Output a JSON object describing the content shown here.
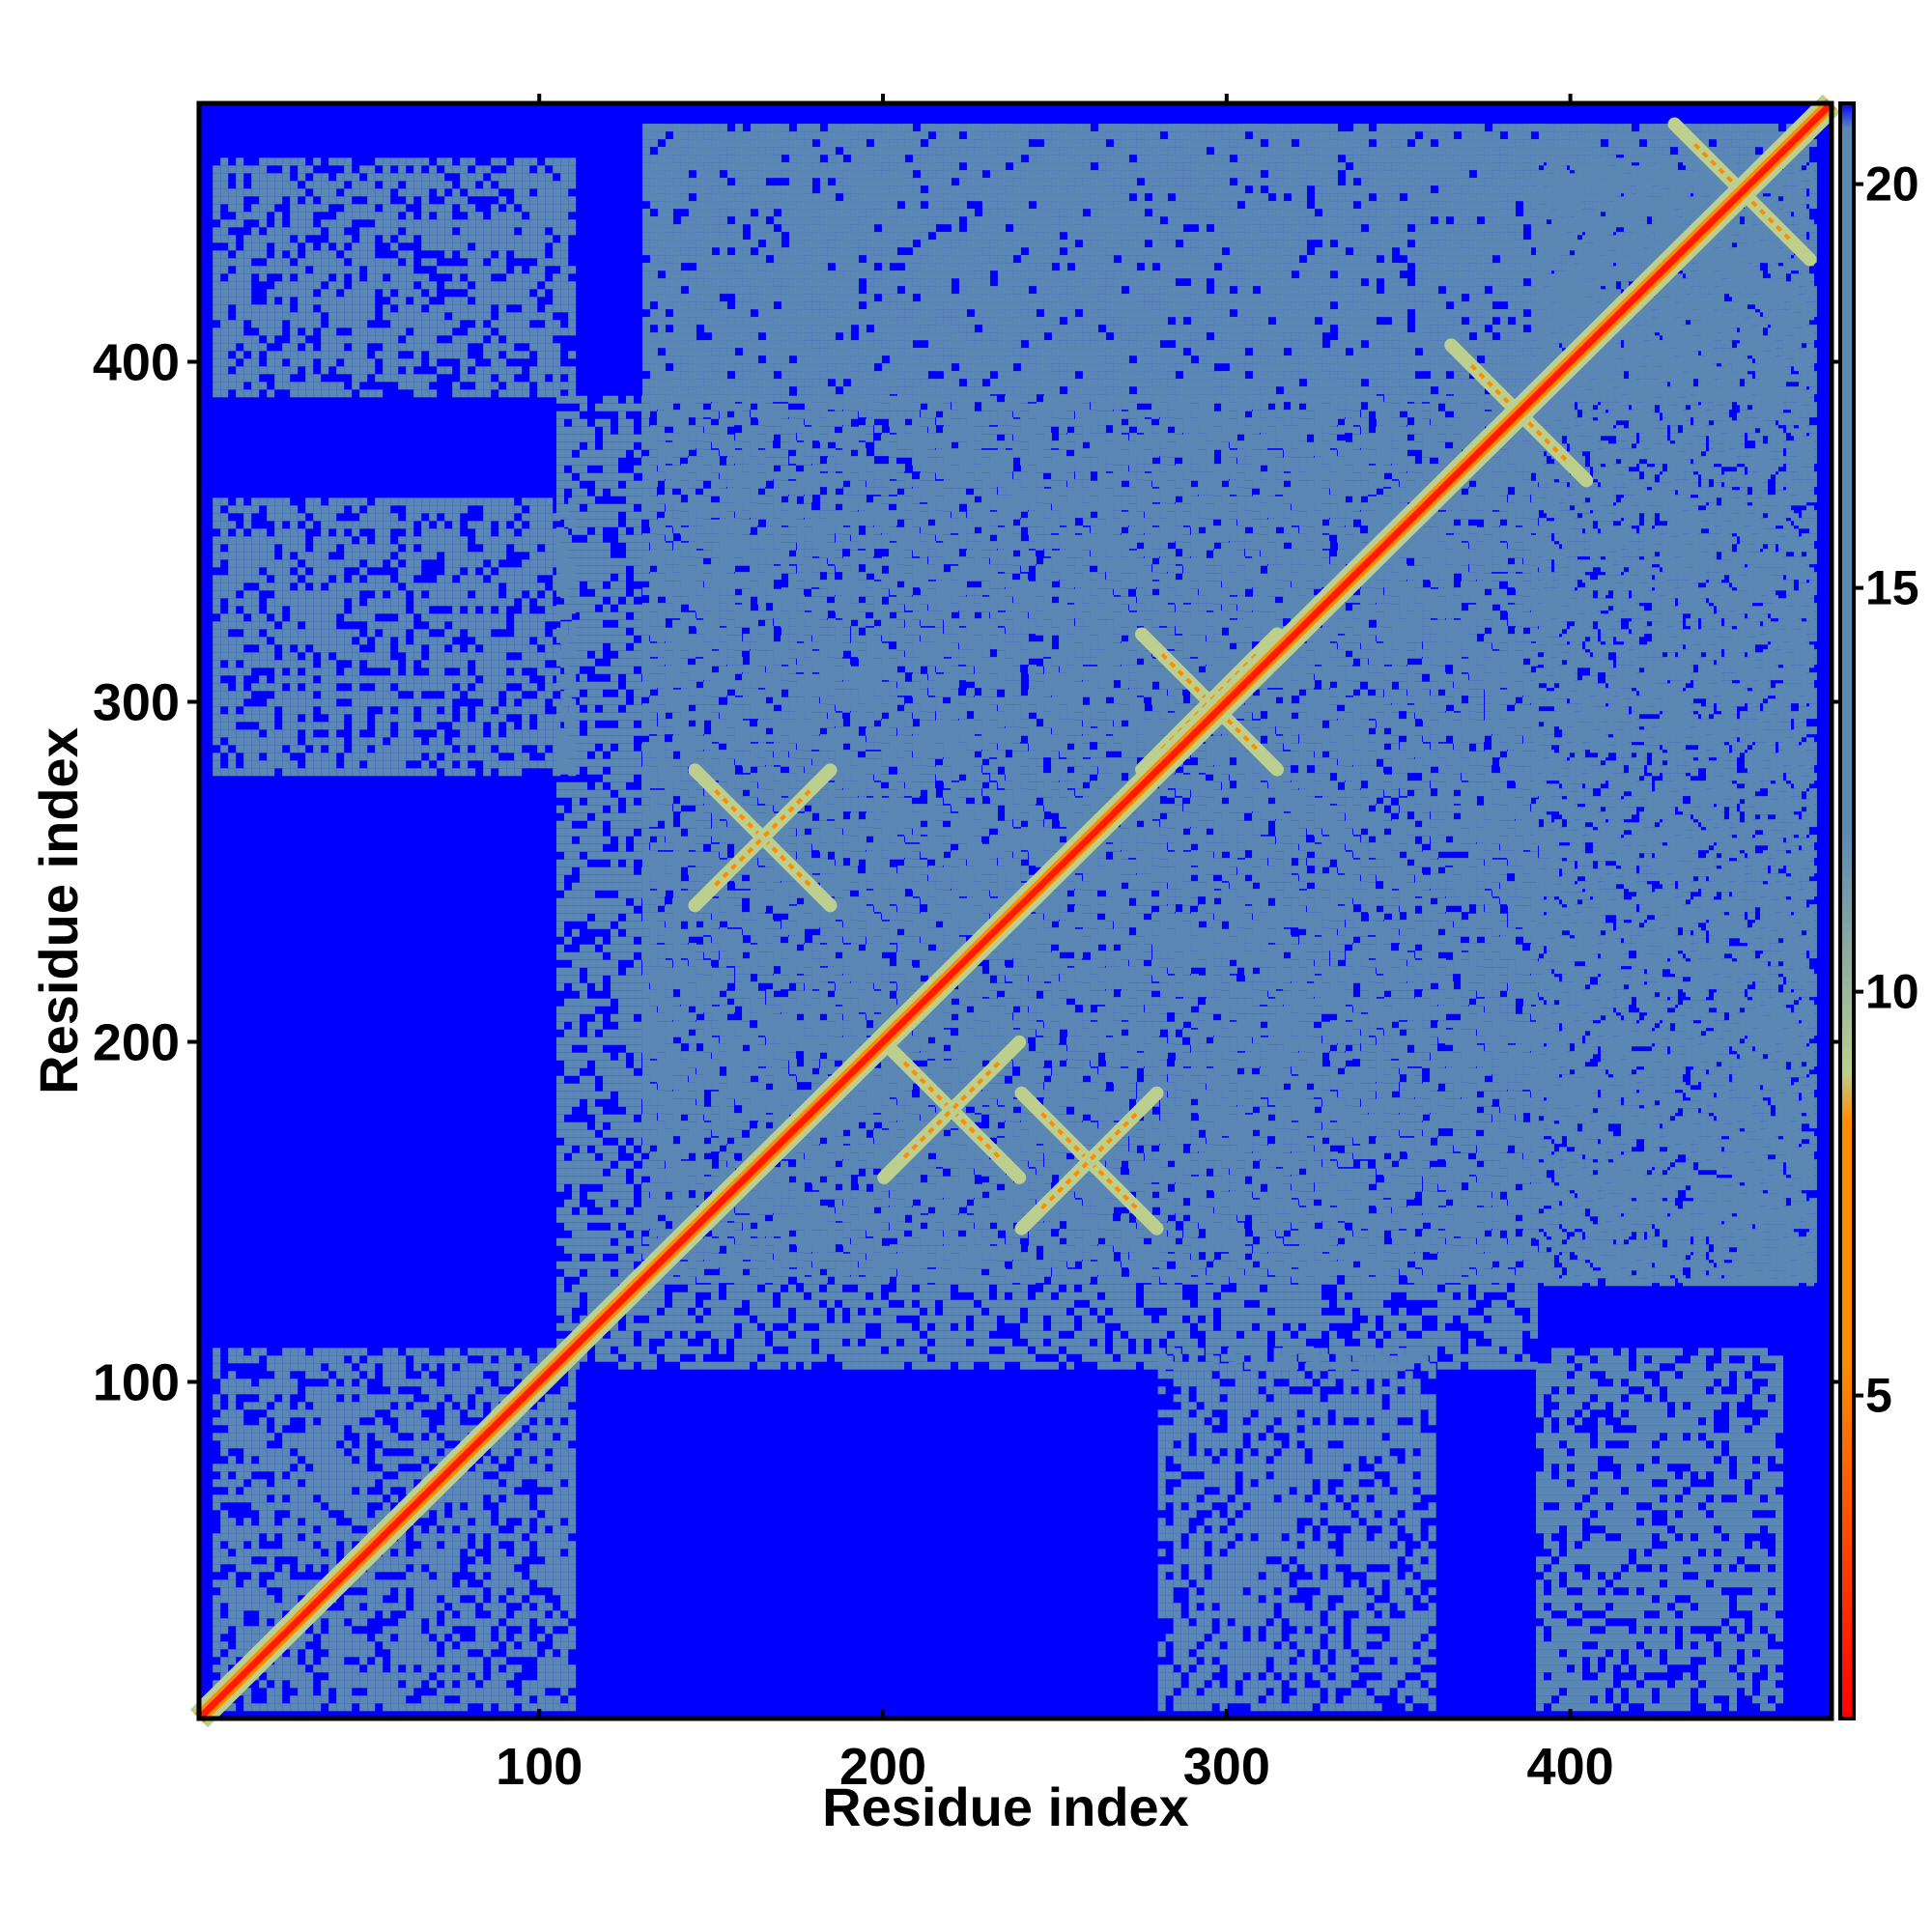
{
  "chart_data": {
    "type": "heatmap",
    "title": "",
    "xlabel": "Residue index",
    "ylabel": "Residue index",
    "xlim": [
      1,
      476
    ],
    "ylim": [
      1,
      476
    ],
    "x_ticks": [
      100,
      200,
      300,
      400
    ],
    "y_ticks": [
      100,
      200,
      300,
      400
    ],
    "colorbar": {
      "ticks": [
        5,
        10,
        15,
        20
      ],
      "range": [
        1,
        21
      ],
      "colors": [
        "#ff0000",
        "#ff8c00",
        "#bccf8e",
        "#5b87b5",
        "#0000ff"
      ]
    },
    "diagonal": {
      "value_min": 1,
      "color": "#ff1a00"
    },
    "contact_regions": [
      {
        "x": [
          5,
          110
        ],
        "y": [
          5,
          110
        ],
        "level": "mid"
      },
      {
        "x": [
          5,
          110
        ],
        "y": [
          280,
          360
        ],
        "level": "mid"
      },
      {
        "x": [
          5,
          110
        ],
        "y": [
          390,
          460
        ],
        "level": "mid"
      },
      {
        "x": [
          105,
          390
        ],
        "y": [
          105,
          390
        ],
        "level": "mid"
      },
      {
        "x": [
          280,
          360
        ],
        "y": [
          5,
          110
        ],
        "level": "mid"
      },
      {
        "x": [
          390,
          460
        ],
        "y": [
          5,
          110
        ],
        "level": "mid"
      },
      {
        "x": [
          130,
          470
        ],
        "y": [
          130,
          470
        ],
        "level": "mid"
      },
      {
        "x": [
          130,
          460
        ],
        "y": [
          390,
          470
        ],
        "level": "mid"
      },
      {
        "x": [
          390,
          470
        ],
        "y": [
          130,
          460
        ],
        "level": "mid"
      }
    ],
    "cross_features": [
      {
        "x": 165,
        "y": 260
      },
      {
        "x": 260,
        "y": 165
      },
      {
        "x": 450,
        "y": 450
      },
      {
        "x": 385,
        "y": 385
      },
      {
        "x": 295,
        "y": 300
      },
      {
        "x": 220,
        "y": 180
      }
    ]
  }
}
